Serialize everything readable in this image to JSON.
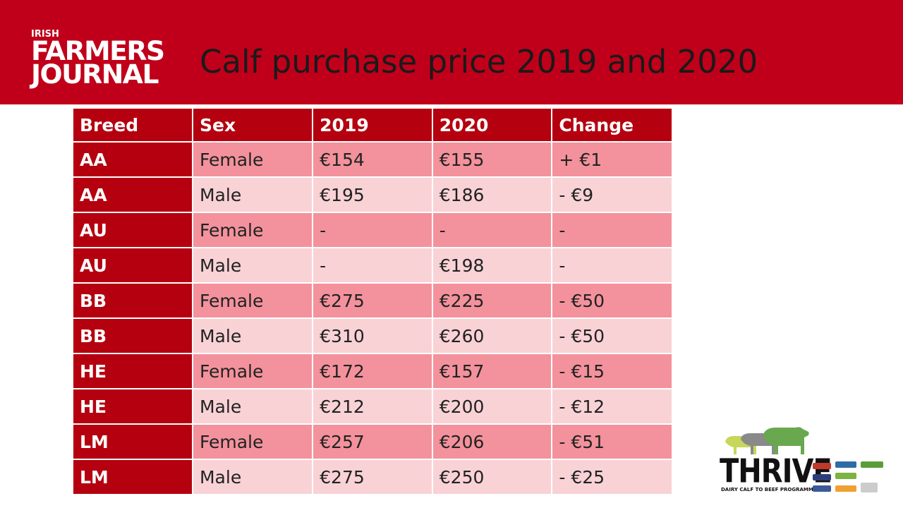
{
  "header": {
    "logo_small": "IRISH",
    "logo_line1": "FARMERS",
    "logo_line2": "JOURNAL",
    "title": "Calf purchase price 2019 and 2020"
  },
  "table": {
    "columns": [
      "Breed",
      "Sex",
      "2019",
      "2020",
      "Change"
    ],
    "rows": [
      [
        "AA",
        "Female",
        "€154",
        "€155",
        "+ €1"
      ],
      [
        "AA",
        "Male",
        "€195",
        "€186",
        "- €9"
      ],
      [
        "AU",
        "Female",
        "-",
        "-",
        "-"
      ],
      [
        "AU",
        "Male",
        "-",
        "€198",
        "-"
      ],
      [
        "BB",
        "Female",
        "€275",
        "€225",
        "- €50"
      ],
      [
        "BB",
        "Male",
        "€310",
        "€260",
        "- €50"
      ],
      [
        "HE",
        "Female",
        "€172",
        "€157",
        "- €15"
      ],
      [
        "HE",
        "Male",
        "€212",
        "€200",
        "- €12"
      ],
      [
        "LM",
        "Female",
        "€257",
        "€206",
        "- €51"
      ],
      [
        "LM",
        "Male",
        "€275",
        "€250",
        "- €25"
      ]
    ]
  },
  "footer_logo": {
    "name": "THRIVE",
    "tagline": "DAIRY CALF TO BEEF PROGRAMME",
    "icon": "cattle-silhouettes-icon"
  },
  "colors": {
    "header_red": "#c0001a",
    "header_cell": "#b5000f",
    "row_dark": "#f3929c",
    "row_light": "#f9d2d6"
  }
}
